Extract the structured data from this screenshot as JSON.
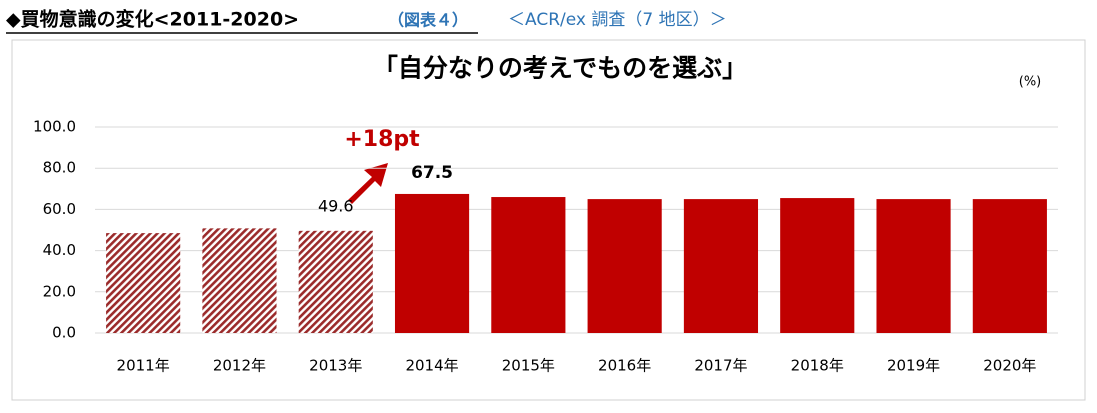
{
  "header": {
    "title": "◆買物意識の変化<2011-2020>",
    "figure": "（図表４）",
    "source": "＜ACR/ex 調査（7 地区）＞"
  },
  "chart_data": {
    "type": "bar",
    "title": "「自分なりの考えでものを選ぶ」",
    "unit": "(%)",
    "categories": [
      "2011年",
      "2012年",
      "2013年",
      "2014年",
      "2015年",
      "2016年",
      "2017年",
      "2018年",
      "2019年",
      "2020年"
    ],
    "values": [
      48.5,
      50.8,
      49.6,
      67.5,
      66.0,
      65.0,
      65.0,
      65.5,
      65.0,
      65.0
    ],
    "value_labels": [
      null,
      null,
      "49.6",
      "67.5",
      null,
      null,
      null,
      null,
      null,
      null
    ],
    "hatched": [
      true,
      true,
      true,
      false,
      false,
      false,
      false,
      false,
      false,
      false
    ],
    "color": "#c00000",
    "annotation": "+18pt",
    "ylim": [
      0,
      100
    ],
    "yticks": [
      {
        "value": 0,
        "label": "0.0"
      },
      {
        "value": 20,
        "label": "20.0"
      },
      {
        "value": 40,
        "label": "40.0"
      },
      {
        "value": 60,
        "label": "60.0"
      },
      {
        "value": 80,
        "label": "80.0"
      },
      {
        "value": 100,
        "label": "100.0"
      }
    ],
    "grid": true
  }
}
